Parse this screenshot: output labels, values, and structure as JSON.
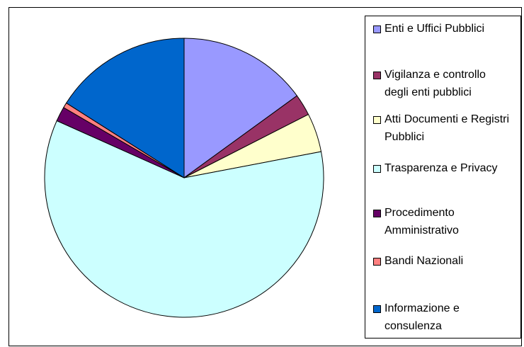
{
  "chart_data": {
    "type": "pie",
    "categories": [
      "Enti e Uffici Pubblici",
      "Vigilanza e controllo degli enti pubblici",
      "Atti Documenti e Registri Pubblici",
      "Trasparenza e Privacy",
      "Procedimento Amministrativo",
      "Bandi Nazionali",
      "Informazione e consulenza"
    ],
    "values": [
      15,
      2.5,
      4.5,
      59.7,
      1.7,
      0.6,
      16
    ],
    "colors": [
      "#9999ff",
      "#993366",
      "#ffffcc",
      "#ccffff",
      "#660066",
      "#ff8080",
      "#0066cc"
    ],
    "legend": "right"
  }
}
